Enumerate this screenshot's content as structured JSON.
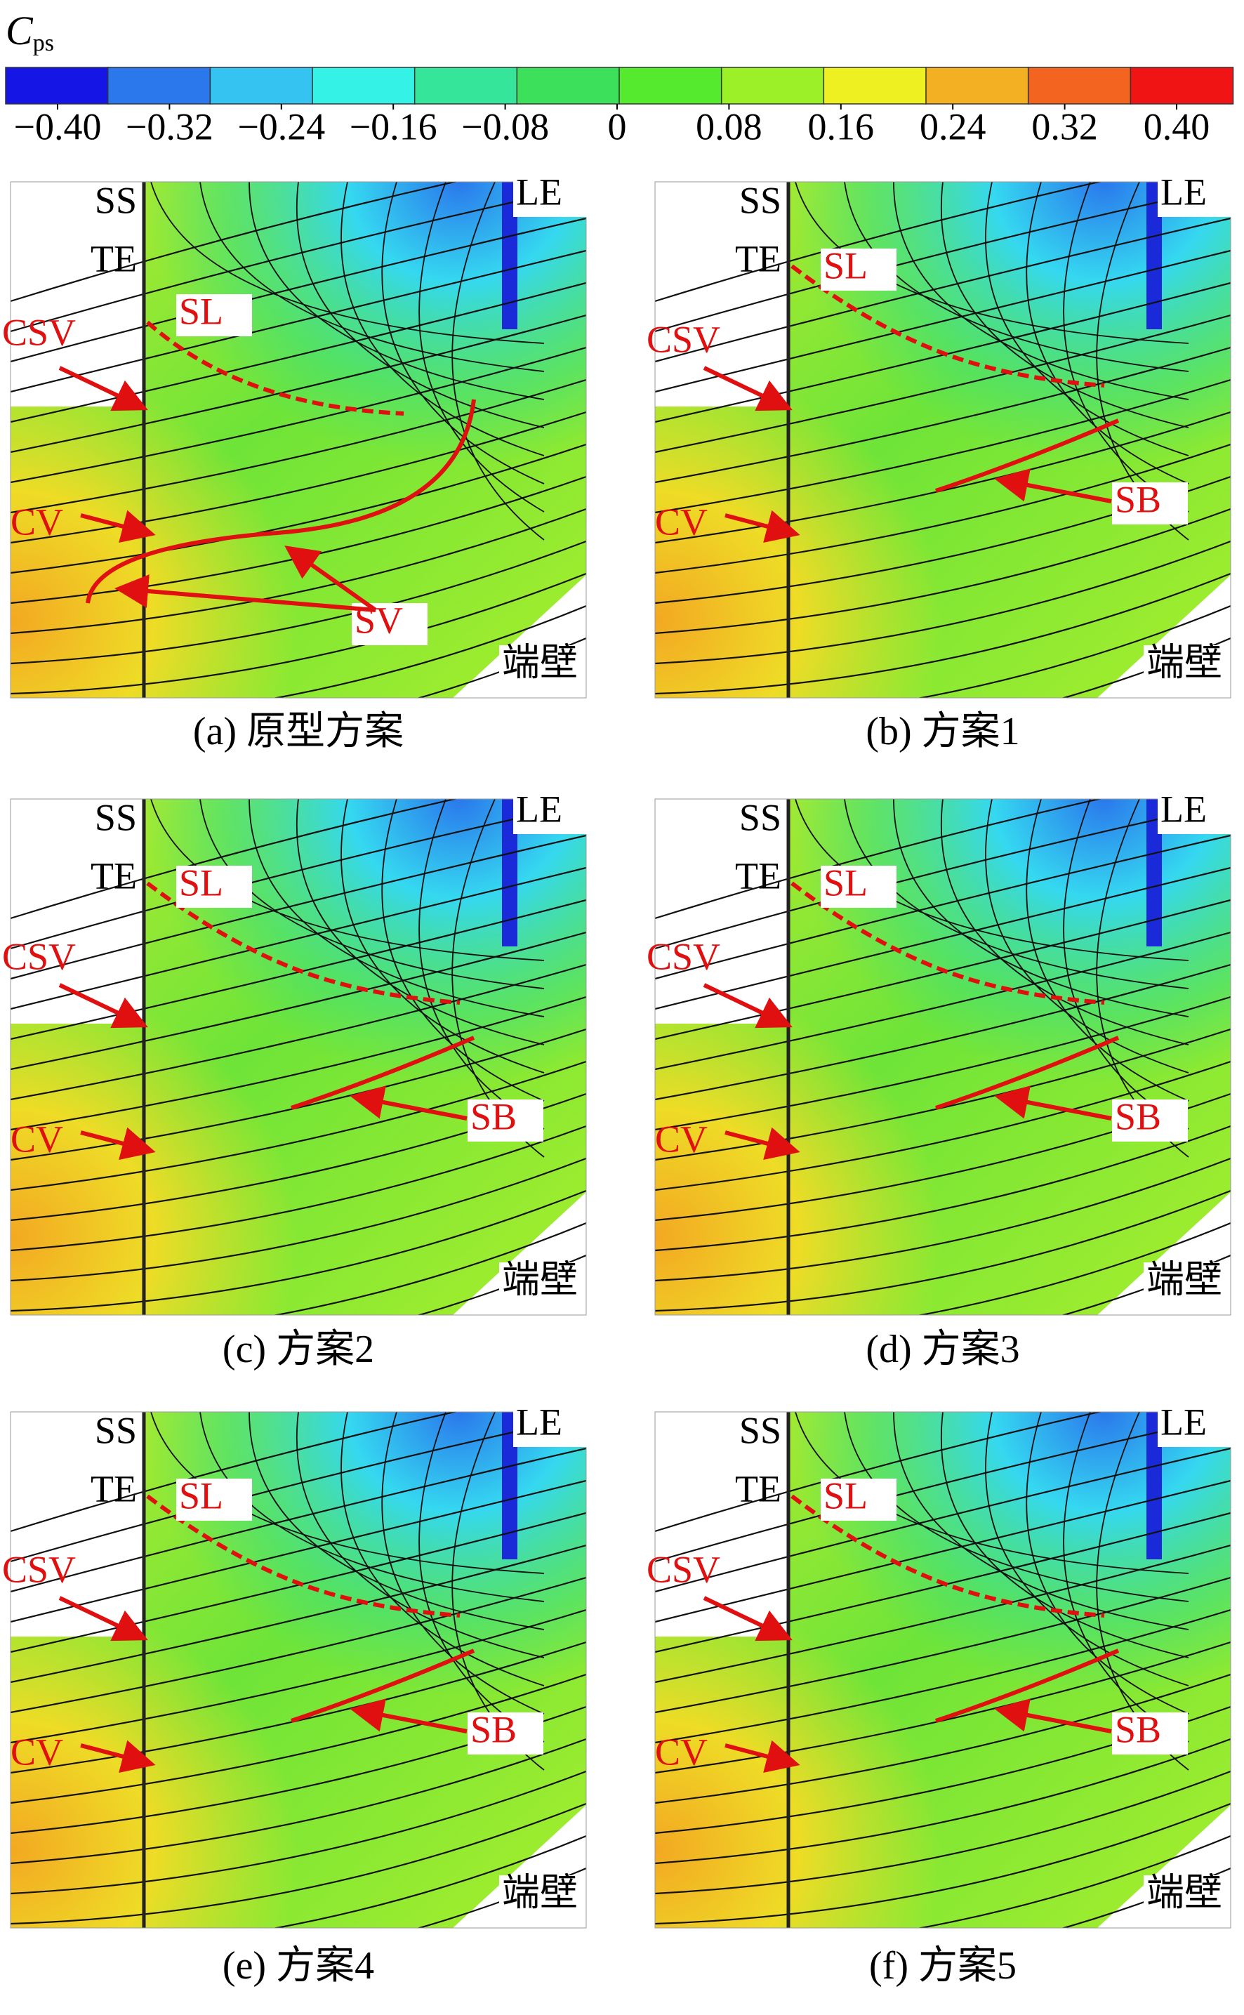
{
  "colorbar": {
    "title": "C",
    "title_sub": "ps",
    "lim": [
      -0.4,
      0.4
    ],
    "ticks": [
      {
        "value": -0.4,
        "label": "−0.40"
      },
      {
        "value": -0.32,
        "label": "−0.32"
      },
      {
        "value": -0.24,
        "label": "−0.24"
      },
      {
        "value": -0.16,
        "label": "−0.16"
      },
      {
        "value": -0.08,
        "label": "−0.08"
      },
      0,
      {
        "value": 0.08,
        "label": "0.08"
      },
      {
        "value": 0.16,
        "label": "0.16"
      },
      {
        "value": 0.24,
        "label": "0.24"
      },
      {
        "value": 0.32,
        "label": "0.32"
      },
      {
        "value": 0.4,
        "label": "0.40"
      }
    ],
    "colors": [
      "#1515e6",
      "#2a78ec",
      "#35c4f2",
      "#35f2e6",
      "#35e69a",
      "#3ce05a",
      "#56ea2e",
      "#9cf028",
      "#eef022",
      "#f3b022",
      "#f26420",
      "#f01414"
    ]
  },
  "panels": [
    {
      "caption": "(a) 原型方案",
      "ss": "SS",
      "te": "TE",
      "le": "LE",
      "sl": "SL",
      "csv": "CSV",
      "cv": "CV",
      "extra": "SV",
      "wall": "端壁"
    },
    {
      "caption": "(b) 方案1",
      "ss": "SS",
      "te": "TE",
      "le": "LE",
      "sl": "SL",
      "csv": "CSV",
      "cv": "CV",
      "extra": "SB",
      "wall": "端壁"
    },
    {
      "caption": "(c) 方案2",
      "ss": "SS",
      "te": "TE",
      "le": "LE",
      "sl": "SL",
      "csv": "CSV",
      "cv": "CV",
      "extra": "SB",
      "wall": "端壁"
    },
    {
      "caption": "(d) 方案3",
      "ss": "SS",
      "te": "TE",
      "le": "LE",
      "sl": "SL",
      "csv": "CSV",
      "cv": "CV",
      "extra": "SB",
      "wall": "端壁"
    },
    {
      "caption": "(e) 方案4",
      "ss": "SS",
      "te": "TE",
      "le": "LE",
      "sl": "SL",
      "csv": "CSV",
      "cv": "CV",
      "extra": "SB",
      "wall": "端壁"
    },
    {
      "caption": "(f) 方案5",
      "ss": "SS",
      "te": "TE",
      "le": "LE",
      "sl": "SL",
      "csv": "CSV",
      "cv": "CV",
      "extra": "SB",
      "wall": "端壁"
    }
  ]
}
